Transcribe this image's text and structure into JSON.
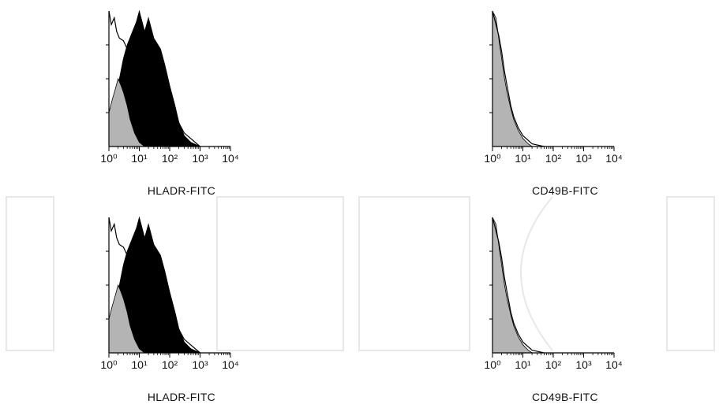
{
  "chart_data": [
    {
      "type": "area",
      "xscale": "log",
      "xlim": [
        1,
        10000
      ],
      "xticks": [
        "10⁰",
        "10¹",
        "10²",
        "10³",
        "10⁴"
      ],
      "xlabel": "HLADR-FITC",
      "series": [
        {
          "color": "#000000",
          "points": [
            [
              1,
              0.05
            ],
            [
              1.5,
              0.2
            ],
            [
              2,
              0.45
            ],
            [
              3,
              0.65
            ],
            [
              4,
              0.75
            ],
            [
              6,
              0.85
            ],
            [
              8,
              0.92
            ],
            [
              10,
              1.0
            ],
            [
              15,
              0.85
            ],
            [
              20,
              0.95
            ],
            [
              30,
              0.8
            ],
            [
              50,
              0.72
            ],
            [
              70,
              0.6
            ],
            [
              100,
              0.45
            ],
            [
              150,
              0.3
            ],
            [
              200,
              0.18
            ],
            [
              300,
              0.08
            ],
            [
              500,
              0.03
            ],
            [
              1000,
              0.0
            ]
          ]
        },
        {
          "color": "#b4b4b4",
          "points": [
            [
              1,
              0.25
            ],
            [
              1.3,
              0.35
            ],
            [
              1.6,
              0.42
            ],
            [
              2,
              0.5
            ],
            [
              2.5,
              0.45
            ],
            [
              3,
              0.4
            ],
            [
              4,
              0.3
            ],
            [
              5,
              0.2
            ],
            [
              7,
              0.1
            ],
            [
              10,
              0.03
            ],
            [
              15,
              0.0
            ]
          ]
        },
        {
          "color": "outline",
          "points": [
            [
              1,
              1.0
            ],
            [
              1.2,
              0.9
            ],
            [
              1.5,
              0.95
            ],
            [
              1.8,
              0.85
            ],
            [
              2.2,
              0.8
            ],
            [
              3,
              0.78
            ],
            [
              4,
              0.72
            ],
            [
              6,
              0.68
            ],
            [
              8,
              0.6
            ],
            [
              10,
              0.55
            ],
            [
              20,
              0.5
            ],
            [
              50,
              0.4
            ],
            [
              100,
              0.3
            ],
            [
              300,
              0.1
            ],
            [
              1000,
              0.0
            ]
          ]
        }
      ]
    },
    {
      "type": "area",
      "xscale": "log",
      "xlim": [
        1,
        10000
      ],
      "xticks": [
        "10⁰",
        "10¹",
        "10²",
        "10³",
        "10⁴"
      ],
      "xlabel": "CD49B-FITC",
      "series": [
        {
          "color": "#b4b4b4",
          "points": [
            [
              1,
              1.0
            ],
            [
              1.3,
              0.95
            ],
            [
              1.6,
              0.8
            ],
            [
              2,
              0.65
            ],
            [
              2.5,
              0.5
            ],
            [
              3,
              0.4
            ],
            [
              4,
              0.28
            ],
            [
              5,
              0.2
            ],
            [
              7,
              0.12
            ],
            [
              10,
              0.06
            ],
            [
              15,
              0.02
            ],
            [
              20,
              0.0
            ]
          ]
        },
        {
          "color": "outline",
          "points": [
            [
              1,
              1.0
            ],
            [
              1.3,
              0.9
            ],
            [
              1.6,
              0.82
            ],
            [
              2,
              0.7
            ],
            [
              2.5,
              0.55
            ],
            [
              3,
              0.45
            ],
            [
              4,
              0.3
            ],
            [
              5,
              0.22
            ],
            [
              7,
              0.14
            ],
            [
              10,
              0.08
            ],
            [
              20,
              0.02
            ],
            [
              50,
              0.0
            ]
          ]
        }
      ]
    },
    {
      "type": "area",
      "xscale": "log",
      "xlim": [
        1,
        10000
      ],
      "xticks": [
        "10⁰",
        "10¹",
        "10²",
        "10³",
        "10⁴"
      ],
      "xlabel": "HLADR-FITC",
      "series": [
        {
          "color": "#000000",
          "points": [
            [
              1,
              0.05
            ],
            [
              1.5,
              0.2
            ],
            [
              2,
              0.45
            ],
            [
              3,
              0.65
            ],
            [
              4,
              0.75
            ],
            [
              6,
              0.85
            ],
            [
              8,
              0.92
            ],
            [
              10,
              1.0
            ],
            [
              15,
              0.85
            ],
            [
              20,
              0.95
            ],
            [
              30,
              0.8
            ],
            [
              50,
              0.72
            ],
            [
              70,
              0.6
            ],
            [
              100,
              0.45
            ],
            [
              150,
              0.3
            ],
            [
              200,
              0.18
            ],
            [
              300,
              0.08
            ],
            [
              500,
              0.03
            ],
            [
              1000,
              0.0
            ]
          ]
        },
        {
          "color": "#b4b4b4",
          "points": [
            [
              1,
              0.25
            ],
            [
              1.3,
              0.35
            ],
            [
              1.6,
              0.42
            ],
            [
              2,
              0.5
            ],
            [
              2.5,
              0.45
            ],
            [
              3,
              0.4
            ],
            [
              4,
              0.3
            ],
            [
              5,
              0.2
            ],
            [
              7,
              0.1
            ],
            [
              10,
              0.03
            ],
            [
              15,
              0.0
            ]
          ]
        },
        {
          "color": "outline",
          "points": [
            [
              1,
              1.0
            ],
            [
              1.2,
              0.9
            ],
            [
              1.5,
              0.95
            ],
            [
              1.8,
              0.85
            ],
            [
              2.2,
              0.8
            ],
            [
              3,
              0.78
            ],
            [
              4,
              0.72
            ],
            [
              6,
              0.68
            ],
            [
              8,
              0.6
            ],
            [
              10,
              0.55
            ],
            [
              20,
              0.5
            ],
            [
              50,
              0.4
            ],
            [
              100,
              0.3
            ],
            [
              300,
              0.1
            ],
            [
              1000,
              0.0
            ]
          ]
        }
      ]
    },
    {
      "type": "area",
      "xscale": "log",
      "xlim": [
        1,
        10000
      ],
      "xticks": [
        "10⁰",
        "10¹",
        "10²",
        "10³",
        "10⁴"
      ],
      "xlabel": "CD49B-FITC",
      "series": [
        {
          "color": "#b4b4b4",
          "points": [
            [
              1,
              1.0
            ],
            [
              1.3,
              0.95
            ],
            [
              1.6,
              0.8
            ],
            [
              2,
              0.65
            ],
            [
              2.5,
              0.5
            ],
            [
              3,
              0.4
            ],
            [
              4,
              0.28
            ],
            [
              5,
              0.2
            ],
            [
              7,
              0.12
            ],
            [
              10,
              0.06
            ],
            [
              15,
              0.02
            ],
            [
              20,
              0.0
            ]
          ]
        },
        {
          "color": "outline",
          "points": [
            [
              1,
              1.0
            ],
            [
              1.3,
              0.9
            ],
            [
              1.6,
              0.82
            ],
            [
              2,
              0.7
            ],
            [
              2.5,
              0.55
            ],
            [
              3,
              0.45
            ],
            [
              4,
              0.3
            ],
            [
              5,
              0.22
            ],
            [
              7,
              0.14
            ],
            [
              10,
              0.08
            ],
            [
              20,
              0.02
            ],
            [
              50,
              0.0
            ]
          ]
        }
      ]
    }
  ]
}
